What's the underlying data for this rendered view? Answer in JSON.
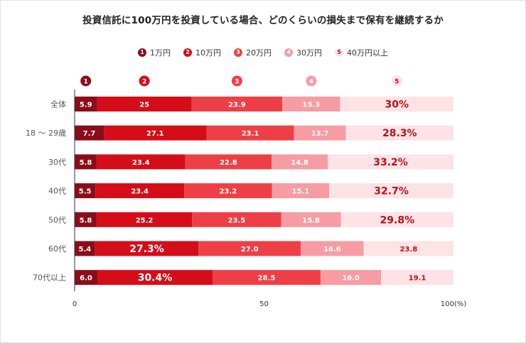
{
  "chart_data": {
    "type": "bar",
    "orientation": "horizontal",
    "stacked": true,
    "title": "投資信託に100万円を投資している場合、どのくらいの損失まで保有を継続するか",
    "legend_position": "top",
    "series": [
      {
        "name": "1万円",
        "marker": "1",
        "color": "#8b0d1a",
        "text_color": "#ffffff"
      },
      {
        "name": "10万円",
        "marker": "2",
        "color": "#d40d19",
        "text_color": "#ffffff"
      },
      {
        "name": "20万円",
        "marker": "3",
        "color": "#ef3f46",
        "text_color": "#ffffff"
      },
      {
        "name": "30万円",
        "marker": "4",
        "color": "#f79ca3",
        "text_color": "#ffffff"
      },
      {
        "name": "40万円以上",
        "marker": "5",
        "color": "#fde3e5",
        "text_color": "#b5121b"
      }
    ],
    "categories": [
      "全体",
      "18 ～ 29歳",
      "30代",
      "40代",
      "50代",
      "60代",
      "70代以上"
    ],
    "values": [
      [
        5.9,
        25,
        23.9,
        15.3,
        30
      ],
      [
        7.7,
        27.1,
        23.1,
        13.7,
        28.3
      ],
      [
        5.8,
        23.4,
        22.8,
        14.8,
        33.2
      ],
      [
        5.5,
        23.4,
        23.2,
        15.1,
        32.7
      ],
      [
        5.8,
        25.2,
        23.5,
        15.8,
        29.8
      ],
      [
        5.4,
        27.3,
        27.0,
        16.6,
        23.8
      ],
      [
        6.0,
        30.4,
        28.5,
        16.0,
        19.1
      ]
    ],
    "labels": [
      [
        "5.9",
        "25",
        "23.9",
        "15.3",
        "30%"
      ],
      [
        "7.7",
        "27.1",
        "23.1",
        "13.7",
        "28.3%"
      ],
      [
        "5.8",
        "23.4",
        "22.8",
        "14.8",
        "33.2%"
      ],
      [
        "5.5",
        "23.4",
        "23.2",
        "15.1",
        "32.7%"
      ],
      [
        "5.8",
        "25.2",
        "23.5",
        "15.8",
        "29.8%"
      ],
      [
        "5.4",
        "27.3%",
        "27.0",
        "16.6",
        "23.8"
      ],
      [
        "6.0",
        "30.4%",
        "28.5",
        "16.0",
        "19.1"
      ]
    ],
    "highlight": [
      [
        false,
        false,
        false,
        false,
        true
      ],
      [
        false,
        false,
        false,
        false,
        true
      ],
      [
        false,
        false,
        false,
        false,
        true
      ],
      [
        false,
        false,
        false,
        false,
        true
      ],
      [
        false,
        false,
        false,
        false,
        true
      ],
      [
        false,
        true,
        false,
        false,
        false
      ],
      [
        false,
        true,
        false,
        false,
        false
      ]
    ],
    "x_ticks": [
      "0",
      "50",
      "100(%)"
    ],
    "x_tick_values": [
      0,
      50,
      100
    ],
    "xlim": [
      0,
      100
    ]
  }
}
